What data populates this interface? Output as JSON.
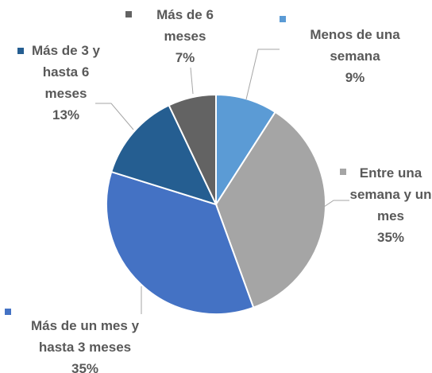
{
  "chart_data": {
    "type": "pie",
    "categories": [
      "Menos de una semana",
      "Entre una semana y un mes",
      "Más de un mes y hasta 3 meses",
      "Más de 3 y hasta 6 meses",
      "Más de 6 meses"
    ],
    "values": [
      9,
      35,
      35,
      13,
      7
    ],
    "value_labels": [
      "9%",
      "35%",
      "35%",
      "13%",
      "7%"
    ],
    "colors": [
      "#5b9bd5",
      "#a5a5a5",
      "#4472c4",
      "#255e91",
      "#636363"
    ]
  }
}
